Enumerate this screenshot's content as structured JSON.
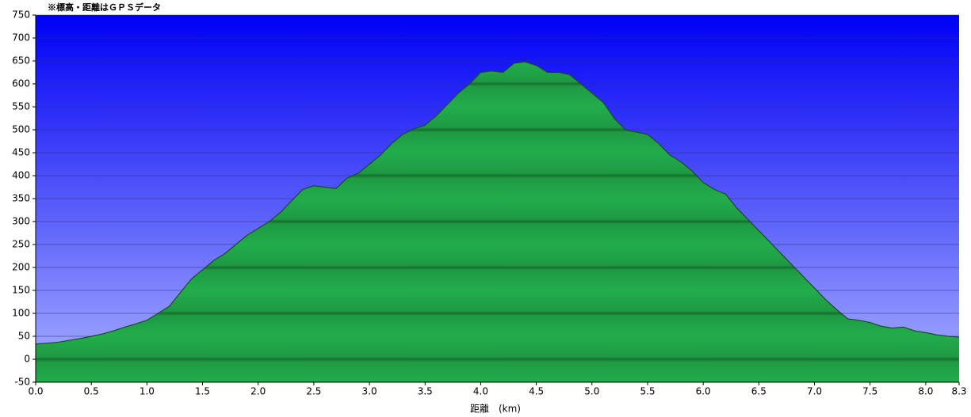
{
  "chart_data": {
    "type": "area",
    "title": "※標高・距離はＧＰＳデータ",
    "x_label": "距離　(km)",
    "x": [
      0.0,
      0.1,
      0.2,
      0.3,
      0.4,
      0.5,
      0.6,
      0.7,
      0.8,
      0.9,
      1.0,
      1.1,
      1.2,
      1.3,
      1.4,
      1.5,
      1.6,
      1.7,
      1.8,
      1.9,
      2.0,
      2.1,
      2.2,
      2.3,
      2.4,
      2.5,
      2.6,
      2.7,
      2.8,
      2.9,
      3.0,
      3.1,
      3.2,
      3.3,
      3.4,
      3.5,
      3.6,
      3.7,
      3.8,
      3.9,
      4.0,
      4.1,
      4.2,
      4.3,
      4.4,
      4.5,
      4.6,
      4.7,
      4.8,
      4.9,
      5.0,
      5.1,
      5.2,
      5.3,
      5.4,
      5.5,
      5.6,
      5.7,
      5.8,
      5.9,
      6.0,
      6.1,
      6.2,
      6.3,
      6.4,
      6.5,
      6.6,
      6.7,
      6.8,
      6.9,
      7.0,
      7.1,
      7.2,
      7.3,
      7.4,
      7.5,
      7.6,
      7.7,
      7.8,
      7.9,
      8.0,
      8.1,
      8.2,
      8.3
    ],
    "values": [
      33,
      35,
      37,
      41,
      45,
      50,
      55,
      62,
      70,
      77,
      85,
      100,
      115,
      145,
      175,
      195,
      215,
      230,
      250,
      270,
      285,
      300,
      320,
      345,
      370,
      378,
      375,
      372,
      395,
      405,
      425,
      445,
      470,
      490,
      502,
      510,
      530,
      555,
      580,
      600,
      625,
      628,
      625,
      645,
      648,
      640,
      625,
      625,
      620,
      600,
      580,
      560,
      525,
      500,
      495,
      490,
      470,
      445,
      430,
      410,
      385,
      370,
      360,
      330,
      305,
      280,
      255,
      230,
      205,
      180,
      155,
      130,
      108,
      88,
      85,
      80,
      72,
      68,
      70,
      62,
      58,
      53,
      50,
      48
    ],
    "color": "#22a84a",
    "xlim": [
      0,
      8.3
    ],
    "ylim": [
      -50,
      750
    ],
    "xticks": [
      {
        "value": 0,
        "label": "0.0"
      },
      0.5,
      {
        "value": 1,
        "label": "1.0"
      },
      1.5,
      {
        "value": 2,
        "label": "2.0"
      },
      2.5,
      {
        "value": 3,
        "label": "3.0"
      },
      3.5,
      {
        "value": 4,
        "label": "4.0"
      },
      4.5,
      {
        "value": 5,
        "label": "5.0"
      },
      5.5,
      {
        "value": 6,
        "label": "6.0"
      },
      6.5,
      {
        "value": 7,
        "label": "7.0"
      },
      7.5,
      {
        "value": 8,
        "label": "8.0"
      },
      8.3
    ],
    "yticks": [
      -50,
      0,
      50,
      100,
      150,
      200,
      250,
      300,
      350,
      400,
      450,
      500,
      550,
      600,
      650,
      700,
      750
    ],
    "grid": true
  }
}
